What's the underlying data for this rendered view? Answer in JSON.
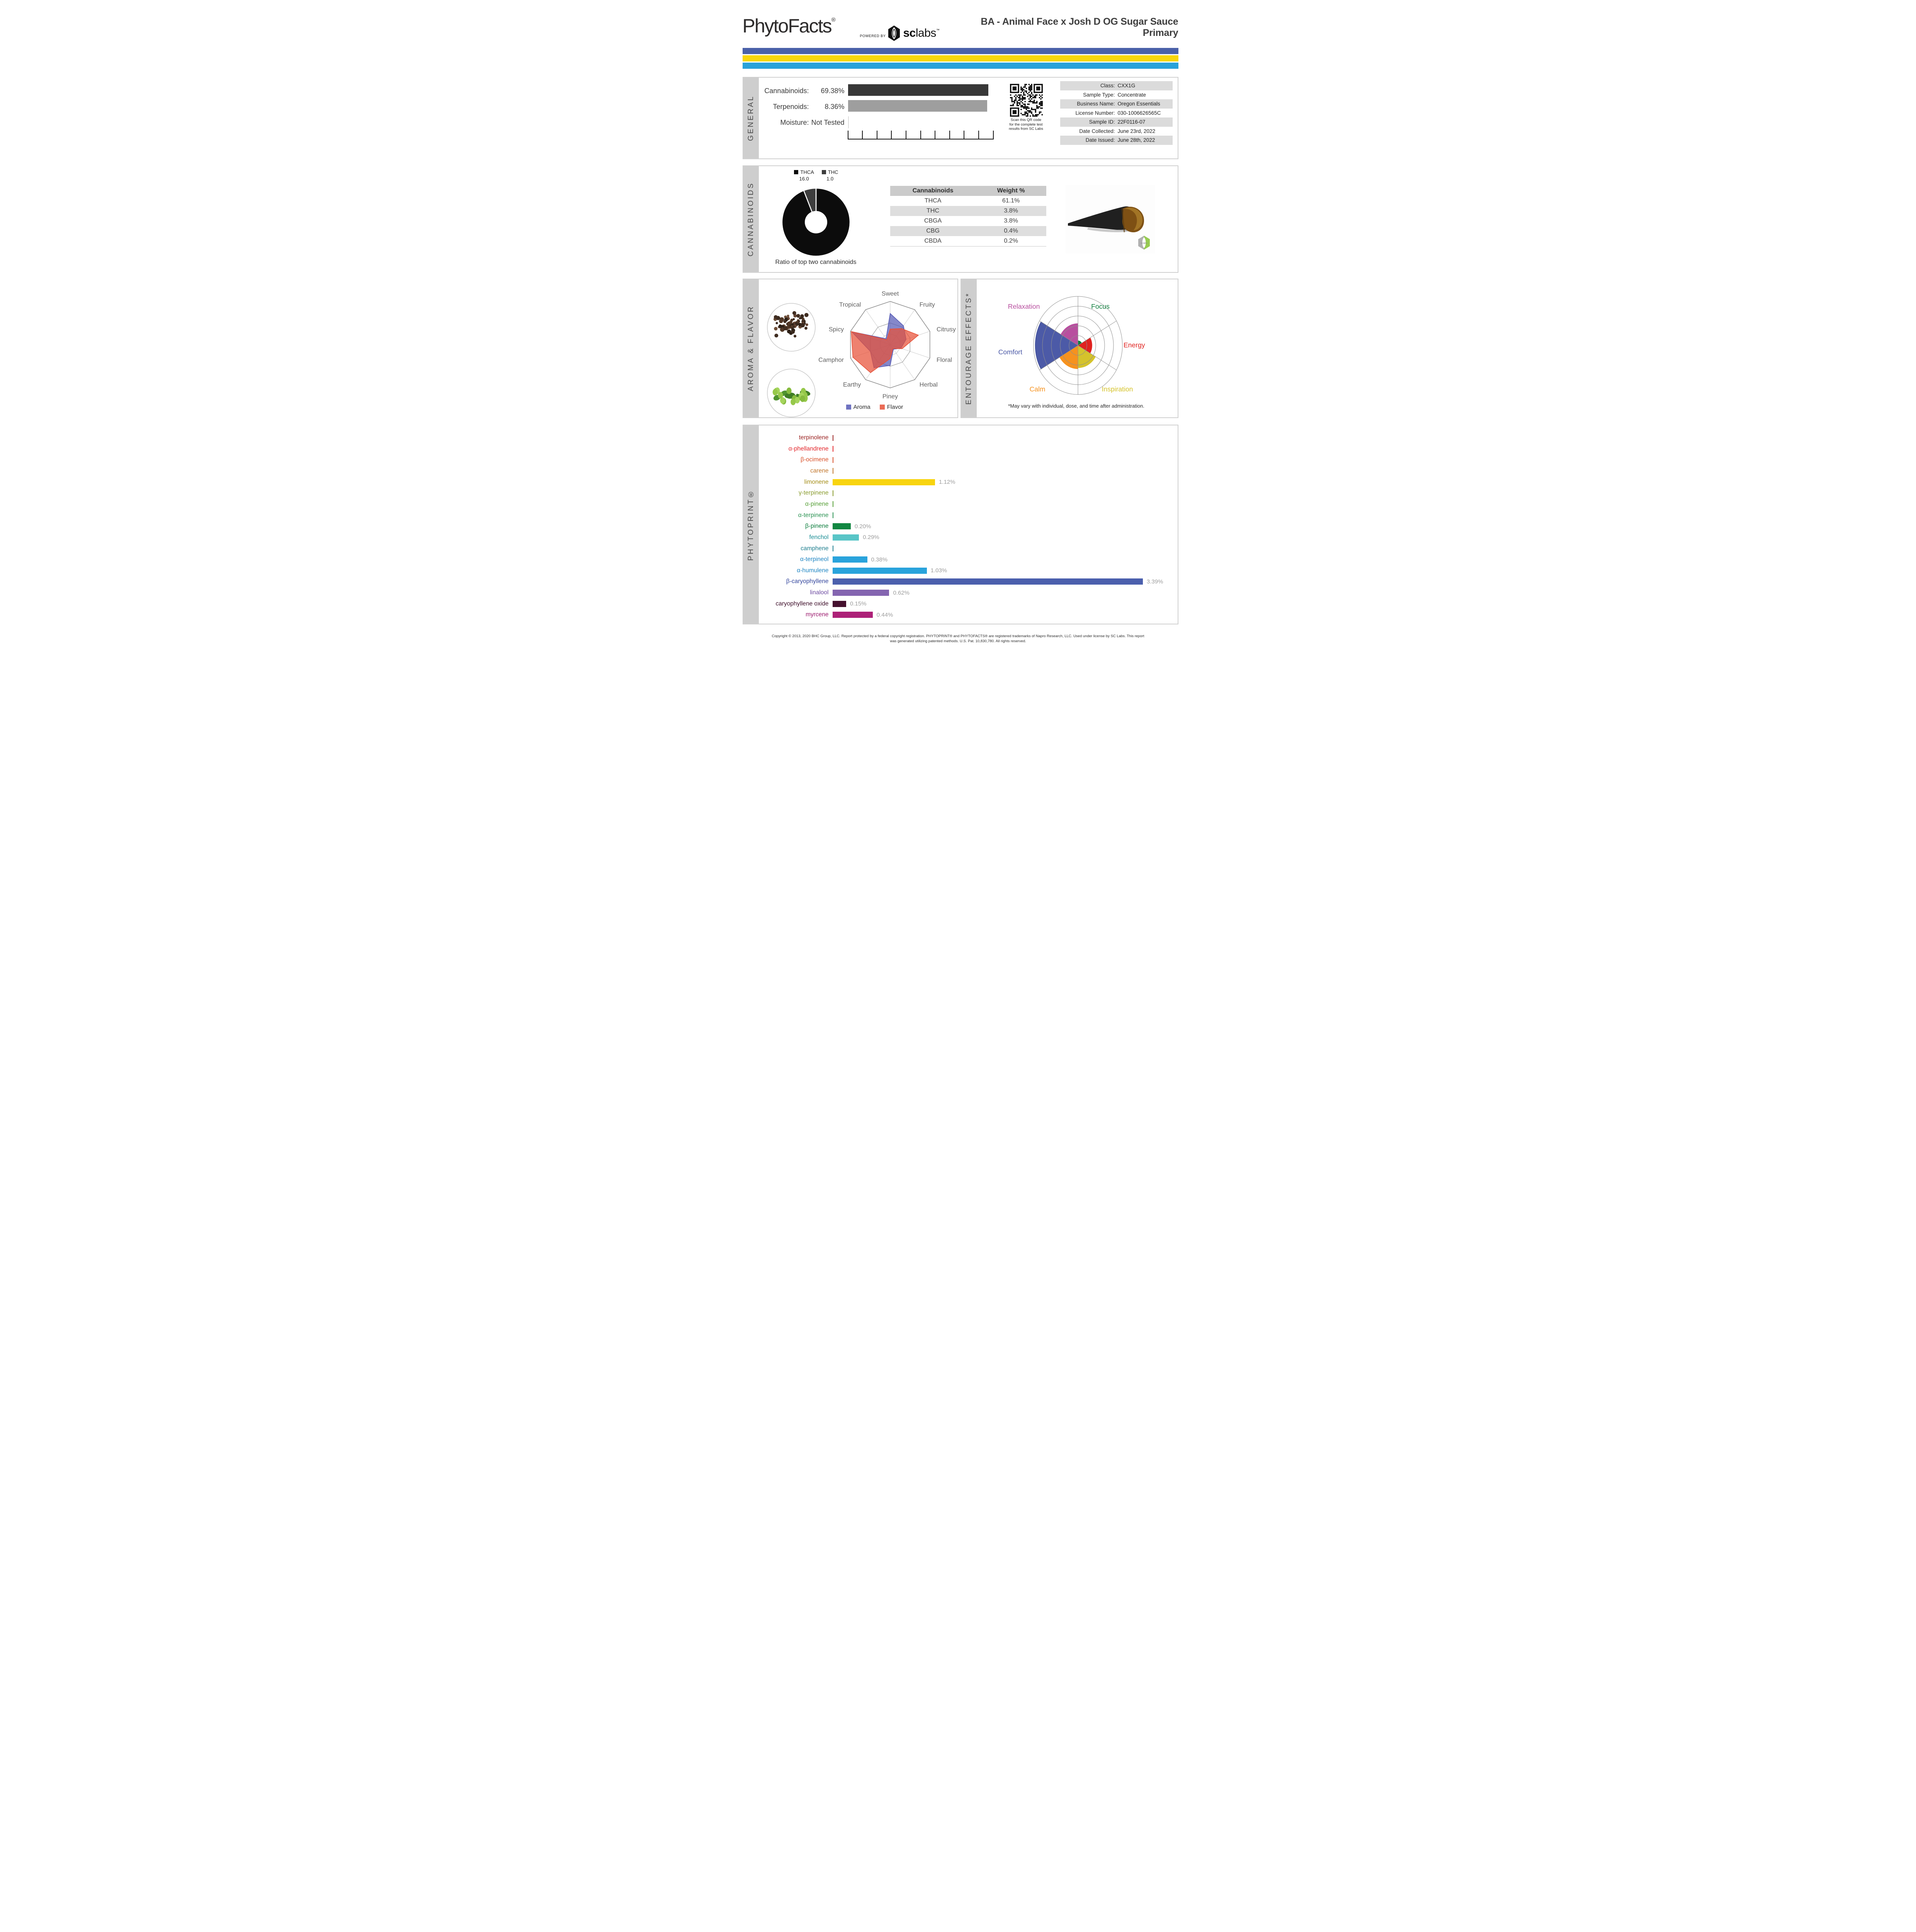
{
  "header": {
    "brand": "PhytoFacts",
    "brand_reg": "®",
    "powered_by": "POWERED BY",
    "lab": {
      "sc": "sc",
      "labs": "labs",
      "tm": "™"
    },
    "title_line1": "BA - Animal Face x Josh D OG Sugar Sauce",
    "title_line2": "Primary",
    "accent_bars": [
      "#4b61a9",
      "#f9d60d",
      "#29a2da"
    ]
  },
  "sections": {
    "general": {
      "label": "GENERAL"
    },
    "cannabinoids": {
      "label": "CANNABINOIDS"
    },
    "aroma": {
      "label": "AROMA & FLAVOR"
    },
    "entourage": {
      "label": "ENTOURAGE EFFECTS*"
    },
    "phytoprint": {
      "label": "PHYTOPRINT®"
    }
  },
  "general": {
    "rows": [
      {
        "label": "Cannabinoids:",
        "value": "69.38%"
      },
      {
        "label": "Terpenoids:",
        "value": "8.36%"
      },
      {
        "label": "Moisture:",
        "value": "Not Tested"
      }
    ],
    "ruler_ticks": 11,
    "qr": {
      "caption_lines": [
        "Scan this QR code",
        "for the complete test",
        "results from SC Labs"
      ]
    },
    "info": [
      {
        "label": "Class:",
        "value": "CXX1G",
        "shaded": true
      },
      {
        "label": "Sample Type:",
        "value": "Concentrate",
        "shaded": false
      },
      {
        "label": "Business Name:",
        "value": "Oregon Essentials",
        "shaded": true
      },
      {
        "label": "License Number:",
        "value": "030-1006626565C",
        "shaded": false
      },
      {
        "label": "Sample ID:",
        "value": "22F0116-07",
        "shaded": true
      },
      {
        "label": "Date Collected:",
        "value": "June 23rd, 2022",
        "shaded": false
      },
      {
        "label": "Date Issued:",
        "value": "June 28th, 2022",
        "shaded": true
      }
    ]
  },
  "cannabinoids": {
    "donut_caption": "Ratio of top two cannabinoids",
    "table": {
      "headers": [
        "Cannabinoids",
        "Weight %"
      ],
      "rows": [
        [
          "THCA",
          "61.1%"
        ],
        [
          "THC",
          "3.8%"
        ],
        [
          "CBGA",
          "3.8%"
        ],
        [
          "CBG",
          "0.4%"
        ],
        [
          "CBDA",
          "0.2%"
        ]
      ]
    },
    "photo_watermark": "sclabs"
  },
  "footer": {
    "line1": "Copyright © 2013, 2020 BHC Group, LLC. Report protected by a federal copyright registration. PHYTOPRINT® and PHYTOFACTS® are registered trademarks of Napro Research, LLC. Used under license by SC Labs. This report",
    "line2": "was generated utilizing patented methods. U.S. Pat. 10,830,780. All rights reserved."
  },
  "chart_data": [
    {
      "id": "general-percent-bars",
      "type": "bar",
      "categories": [
        "Cannabinoids",
        "Terpenoids",
        "Moisture"
      ],
      "values": [
        69.38,
        8.36,
        null
      ],
      "value_labels": [
        "69.38%",
        "8.36%",
        "Not Tested"
      ],
      "bar_colors": [
        "#383838",
        "#9e9e9e",
        null
      ],
      "note": "both measured bars rendered at equal full track width in source report"
    },
    {
      "id": "cannabinoid-ratio-donut",
      "type": "pie",
      "categories": [
        "THCA",
        "THC"
      ],
      "values": [
        16.0,
        1.0
      ],
      "colors": [
        "#0c0c0c",
        "#3d3d3d"
      ],
      "title": "Ratio of top two cannabinoids"
    },
    {
      "id": "aroma-flavor-radar",
      "type": "radar",
      "axes": [
        "Sweet",
        "Fruity",
        "Citrusy",
        "Floral",
        "Herbal",
        "Piney",
        "Earthy",
        "Camphor",
        "Spicy",
        "Tropical"
      ],
      "series": [
        {
          "name": "Aroma",
          "color": "#565ab6",
          "values": [
            0.72,
            0.54,
            0.4,
            0.27,
            0.13,
            0.48,
            0.66,
            0.5,
            0.97,
            0.17
          ]
        },
        {
          "name": "Flavor",
          "color": "#e75138",
          "values": [
            0.36,
            0.46,
            0.71,
            0.3,
            0.11,
            0.32,
            0.8,
            0.94,
            0.98,
            0.14
          ]
        }
      ],
      "scale": "relative 0-1 of outer decagon, gridlines at 0.25 and 0.5",
      "legend_position": "bottom"
    },
    {
      "id": "entourage-polar",
      "type": "polar-wedges",
      "categories": [
        "Relaxation",
        "Focus",
        "Energy",
        "Inspiration",
        "Calm",
        "Comfort"
      ],
      "values": [
        0.45,
        0.1,
        0.32,
        0.46,
        0.48,
        0.96
      ],
      "colors": [
        "#b84f9f",
        "#0e7d3c",
        "#e0221f",
        "#d5c32b",
        "#f6921e",
        "#4c5aa7"
      ],
      "rings": 5,
      "footnote": "*May vary with individual, dose, and time after administration."
    },
    {
      "id": "phytoprint-terpenes",
      "type": "bar",
      "categories": [
        "terpinolene",
        "α-phellandrene",
        "β-ocimene",
        "carene",
        "limonene",
        "γ-terpinene",
        "α-pinene",
        "α-terpinene",
        "β-pinene",
        "fenchol",
        "camphene",
        "α-terpineol",
        "α-humulene",
        "β-caryophyllene",
        "linalool",
        "caryophyllene oxide",
        "myrcene"
      ],
      "values": [
        0,
        0,
        0,
        0,
        1.12,
        0,
        0,
        0,
        0.2,
        0.29,
        0,
        0.38,
        1.03,
        3.39,
        0.62,
        0.15,
        0.44
      ],
      "value_labels": [
        "",
        "",
        "",
        "",
        "1.12%",
        "",
        "",
        "",
        "0.20%",
        "0.29%",
        "",
        "0.38%",
        "1.03%",
        "3.39%",
        "0.62%",
        "0.15%",
        "0.44%"
      ],
      "label_colors": [
        "#9b2423",
        "#e3262b",
        "#d9512b",
        "#c1762c",
        "#a58f1b",
        "#8a9c2f",
        "#57a038",
        "#2e9455",
        "#0e7e3e",
        "#1d8f96",
        "#1f7f8f",
        "#2187c4",
        "#2187c4",
        "#35479e",
        "#6f4da3",
        "#3d0d29",
        "#9c1a6e"
      ],
      "bar_colors": [
        "#9b2423",
        "#e3262b",
        "#d9512b",
        "#c1762c",
        "#f8d410",
        "#8a9c2f",
        "#57a038",
        "#2e9455",
        "#128742",
        "#58c5c7",
        "#1f7f8f",
        "#29a3dc",
        "#29a3dc",
        "#4b5fad",
        "#8465b0",
        "#45102e",
        "#ad2178"
      ],
      "xlabel": "",
      "ylabel": "",
      "xlim_percent": [
        0,
        3.8
      ]
    }
  ]
}
